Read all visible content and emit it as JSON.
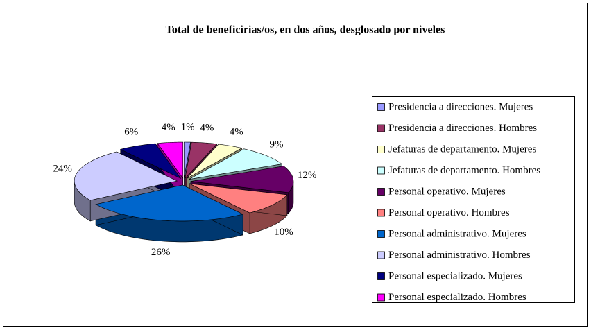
{
  "chart_data": {
    "type": "pie",
    "title": "Total de beneficirias/os, en dos años, desglosado por niveles",
    "categories": [
      "Presidencia a direcciones. Mujeres",
      "Presidencia a direcciones. Hombres",
      "Jefaturas de departamento. Mujeres",
      "Jefaturas de departamento. Hombres",
      "Personal operativo. Mujeres",
      "Personal operativo. Hombres",
      "Personal administrativo. Mujeres",
      "Personal administrativo. Hombres",
      "Personal especializado. Mujeres",
      "Personal especializado. Hombres"
    ],
    "values": [
      1,
      4,
      4,
      9,
      12,
      10,
      26,
      24,
      6,
      4
    ],
    "value_labels": [
      "1%",
      "4%",
      "4%",
      "9%",
      "12%",
      "10%",
      "26%",
      "24%",
      "6%",
      "4%"
    ],
    "colors": [
      "#9999ff",
      "#993366",
      "#ffffcc",
      "#ccffff",
      "#660066",
      "#ff8080",
      "#0066cc",
      "#ccccff",
      "#000080",
      "#ff00ff"
    ],
    "legend": "right"
  }
}
